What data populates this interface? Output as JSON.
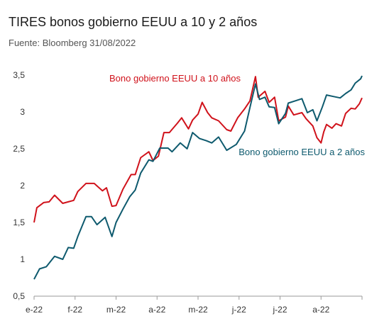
{
  "header": {
    "title": "TIRES bonos gobierno EEUU a 10 y 2 años",
    "subtitle": "Fuente: Bloomberg 31/08/2022"
  },
  "chart_data": {
    "type": "line",
    "title": "TIRES bonos gobierno EEUU a 10 y 2 años",
    "xlabel": "",
    "ylabel": "",
    "ylim": [
      0.5,
      3.5
    ],
    "yticks": [
      "0,5",
      "1",
      "1,5",
      "2",
      "2,5",
      "3",
      "3,5"
    ],
    "xticks": [
      "e-22",
      "f-22",
      "m-22",
      "a-22",
      "m-22",
      "j-22",
      "j-22",
      "a-22"
    ],
    "grid": false,
    "x_period": [
      "2022-01-03",
      "2022-08-31"
    ],
    "series": [
      {
        "name": "Bono gobierno EEUU a 10 años",
        "color": "#d0121b",
        "label_position": "top-center",
        "points": [
          [
            "2022-01-03",
            1.5
          ],
          [
            "2022-01-05",
            1.7
          ],
          [
            "2022-01-10",
            1.77
          ],
          [
            "2022-01-14",
            1.78
          ],
          [
            "2022-01-18",
            1.87
          ],
          [
            "2022-01-24",
            1.76
          ],
          [
            "2022-01-28",
            1.78
          ],
          [
            "2022-02-01",
            1.8
          ],
          [
            "2022-02-04",
            1.92
          ],
          [
            "2022-02-10",
            2.03
          ],
          [
            "2022-02-16",
            2.03
          ],
          [
            "2022-02-22",
            1.93
          ],
          [
            "2022-02-25",
            1.97
          ],
          [
            "2022-03-01",
            1.72
          ],
          [
            "2022-03-04",
            1.73
          ],
          [
            "2022-03-09",
            1.95
          ],
          [
            "2022-03-15",
            2.15
          ],
          [
            "2022-03-18",
            2.15
          ],
          [
            "2022-03-22",
            2.38
          ],
          [
            "2022-03-28",
            2.46
          ],
          [
            "2022-03-31",
            2.34
          ],
          [
            "2022-04-04",
            2.4
          ],
          [
            "2022-04-08",
            2.72
          ],
          [
            "2022-04-12",
            2.72
          ],
          [
            "2022-04-18",
            2.85
          ],
          [
            "2022-04-21",
            2.92
          ],
          [
            "2022-04-26",
            2.77
          ],
          [
            "2022-04-29",
            2.89
          ],
          [
            "2022-05-03",
            2.97
          ],
          [
            "2022-05-06",
            3.13
          ],
          [
            "2022-05-10",
            2.99
          ],
          [
            "2022-05-13",
            2.92
          ],
          [
            "2022-05-18",
            2.88
          ],
          [
            "2022-05-24",
            2.76
          ],
          [
            "2022-05-27",
            2.74
          ],
          [
            "2022-06-01",
            2.92
          ],
          [
            "2022-06-06",
            3.04
          ],
          [
            "2022-06-10",
            3.15
          ],
          [
            "2022-06-14",
            3.48
          ],
          [
            "2022-06-16",
            3.2
          ],
          [
            "2022-06-21",
            3.28
          ],
          [
            "2022-06-24",
            3.13
          ],
          [
            "2022-06-28",
            3.2
          ],
          [
            "2022-07-01",
            2.88
          ],
          [
            "2022-07-06",
            2.93
          ],
          [
            "2022-07-08",
            3.08
          ],
          [
            "2022-07-12",
            2.96
          ],
          [
            "2022-07-18",
            2.99
          ],
          [
            "2022-07-21",
            2.91
          ],
          [
            "2022-07-26",
            2.81
          ],
          [
            "2022-07-29",
            2.65
          ],
          [
            "2022-08-01",
            2.58
          ],
          [
            "2022-08-03",
            2.73
          ],
          [
            "2022-08-05",
            2.83
          ],
          [
            "2022-08-09",
            2.78
          ],
          [
            "2022-08-12",
            2.84
          ],
          [
            "2022-08-16",
            2.81
          ],
          [
            "2022-08-19",
            2.98
          ],
          [
            "2022-08-23",
            3.05
          ],
          [
            "2022-08-26",
            3.04
          ],
          [
            "2022-08-29",
            3.11
          ],
          [
            "2022-08-31",
            3.19
          ]
        ]
      },
      {
        "name": "Bono gobierno EEUU a 2 años",
        "color": "#0e5a6e",
        "label_position": "right",
        "points": [
          [
            "2022-01-03",
            0.73
          ],
          [
            "2022-01-07",
            0.87
          ],
          [
            "2022-01-12",
            0.9
          ],
          [
            "2022-01-18",
            1.04
          ],
          [
            "2022-01-24",
            1.0
          ],
          [
            "2022-01-28",
            1.16
          ],
          [
            "2022-02-01",
            1.15
          ],
          [
            "2022-02-04",
            1.31
          ],
          [
            "2022-02-10",
            1.58
          ],
          [
            "2022-02-14",
            1.58
          ],
          [
            "2022-02-18",
            1.47
          ],
          [
            "2022-02-24",
            1.57
          ],
          [
            "2022-03-01",
            1.31
          ],
          [
            "2022-03-04",
            1.5
          ],
          [
            "2022-03-09",
            1.68
          ],
          [
            "2022-03-14",
            1.85
          ],
          [
            "2022-03-18",
            1.94
          ],
          [
            "2022-03-22",
            2.17
          ],
          [
            "2022-03-28",
            2.35
          ],
          [
            "2022-03-31",
            2.33
          ],
          [
            "2022-04-05",
            2.51
          ],
          [
            "2022-04-11",
            2.51
          ],
          [
            "2022-04-14",
            2.46
          ],
          [
            "2022-04-20",
            2.58
          ],
          [
            "2022-04-25",
            2.5
          ],
          [
            "2022-04-29",
            2.72
          ],
          [
            "2022-05-04",
            2.64
          ],
          [
            "2022-05-09",
            2.61
          ],
          [
            "2022-05-13",
            2.58
          ],
          [
            "2022-05-18",
            2.66
          ],
          [
            "2022-05-24",
            2.48
          ],
          [
            "2022-05-31",
            2.56
          ],
          [
            "2022-06-06",
            2.74
          ],
          [
            "2022-06-10",
            3.06
          ],
          [
            "2022-06-14",
            3.38
          ],
          [
            "2022-06-17",
            3.17
          ],
          [
            "2022-06-21",
            3.2
          ],
          [
            "2022-06-24",
            3.07
          ],
          [
            "2022-06-28",
            3.06
          ],
          [
            "2022-07-01",
            2.84
          ],
          [
            "2022-07-06",
            2.98
          ],
          [
            "2022-07-08",
            3.12
          ],
          [
            "2022-07-13",
            3.15
          ],
          [
            "2022-07-18",
            3.18
          ],
          [
            "2022-07-22",
            2.99
          ],
          [
            "2022-07-26",
            3.03
          ],
          [
            "2022-07-29",
            2.88
          ],
          [
            "2022-08-02",
            3.07
          ],
          [
            "2022-08-05",
            3.23
          ],
          [
            "2022-08-10",
            3.21
          ],
          [
            "2022-08-15",
            3.19
          ],
          [
            "2022-08-19",
            3.25
          ],
          [
            "2022-08-23",
            3.3
          ],
          [
            "2022-08-26",
            3.39
          ],
          [
            "2022-08-30",
            3.45
          ],
          [
            "2022-08-31",
            3.49
          ]
        ]
      }
    ]
  }
}
